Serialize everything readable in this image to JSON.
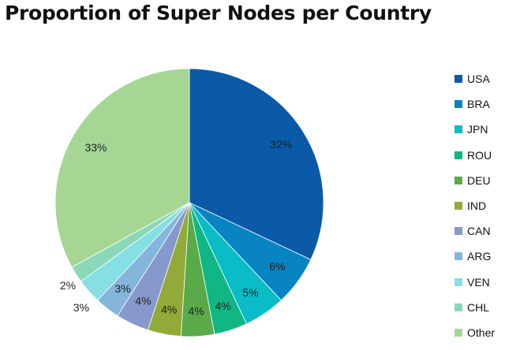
{
  "chart_data": {
    "type": "pie",
    "title": "Proportion of Super Nodes per Country",
    "slices": [
      {
        "label": "USA",
        "value": 32,
        "display": "32%",
        "color": "#0a5aa8"
      },
      {
        "label": "BRA",
        "value": 6,
        "display": "6%",
        "color": "#0984c2"
      },
      {
        "label": "JPN",
        "value": 5,
        "display": "5%",
        "color": "#0abcc6"
      },
      {
        "label": "ROU",
        "value": 4,
        "display": "4%",
        "color": "#10b785"
      },
      {
        "label": "DEU",
        "value": 4,
        "display": "4%",
        "color": "#5aaa4a"
      },
      {
        "label": "IND",
        "value": 4,
        "display": "4%",
        "color": "#92aa38"
      },
      {
        "label": "CAN",
        "value": 4,
        "display": "4%",
        "color": "#8798cc"
      },
      {
        "label": "ARG",
        "value": 3,
        "display": "3%",
        "color": "#84b6dc"
      },
      {
        "label": "VEN",
        "value": 3,
        "display": "3%",
        "color": "#86dfe2"
      },
      {
        "label": "CHL",
        "value": 2,
        "display": "2%",
        "color": "#8ad8ba"
      },
      {
        "label": "Other",
        "value": 33,
        "display": "33%",
        "color": "#a6d693"
      }
    ],
    "legend_position": "right"
  }
}
